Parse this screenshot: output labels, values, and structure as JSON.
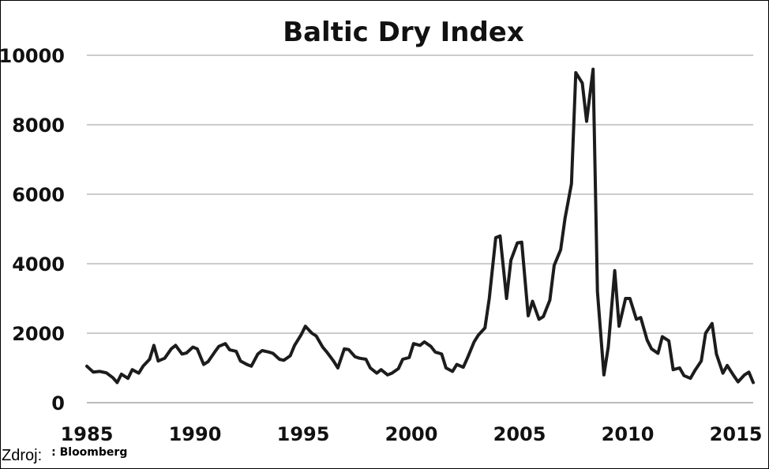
{
  "chart_data": {
    "type": "line",
    "title": "Baltic Dry Index",
    "xlabel": "",
    "ylabel": "",
    "xlim": [
      1985,
      2015.8
    ],
    "ylim": [
      0,
      10000
    ],
    "x_ticks": [
      "1985",
      "1990",
      "1995",
      "2000",
      "2005",
      "2010",
      "2015"
    ],
    "y_ticks": [
      "0",
      "2000",
      "4000",
      "6000",
      "8000",
      "10000"
    ],
    "grid": "horizontal",
    "series": [
      {
        "name": "",
        "color": "#1c1c1c",
        "x": [
          1985.0,
          1985.3,
          1985.6,
          1985.9,
          1986.2,
          1986.4,
          1986.6,
          1986.9,
          1987.1,
          1987.4,
          1987.6,
          1987.9,
          1988.1,
          1988.3,
          1988.6,
          1988.9,
          1989.1,
          1989.4,
          1989.6,
          1989.9,
          1990.1,
          1990.4,
          1990.6,
          1990.9,
          1991.1,
          1991.4,
          1991.6,
          1991.9,
          1992.1,
          1992.4,
          1992.6,
          1992.9,
          1993.1,
          1993.4,
          1993.6,
          1993.9,
          1994.1,
          1994.4,
          1994.6,
          1994.9,
          1995.1,
          1995.4,
          1995.6,
          1995.9,
          1996.1,
          1996.4,
          1996.6,
          1996.9,
          1997.1,
          1997.4,
          1997.6,
          1997.9,
          1998.1,
          1998.4,
          1998.6,
          1998.9,
          1999.1,
          1999.4,
          1999.6,
          1999.9,
          2000.1,
          2000.4,
          2000.6,
          2000.9,
          2001.1,
          2001.4,
          2001.6,
          2001.9,
          2002.1,
          2002.4,
          2002.6,
          2002.9,
          2003.1,
          2003.4,
          2003.6,
          2003.9,
          2004.1,
          2004.4,
          2004.6,
          2004.9,
          2005.1,
          2005.4,
          2005.6,
          2005.9,
          2006.1,
          2006.4,
          2006.6,
          2006.9,
          2007.1,
          2007.4,
          2007.6,
          2007.9,
          2008.1,
          2008.4,
          2008.6,
          2008.9,
          2009.1,
          2009.4,
          2009.6,
          2009.9,
          2010.1,
          2010.4,
          2010.6,
          2010.9,
          2011.1,
          2011.4,
          2011.6,
          2011.9,
          2012.1,
          2012.4,
          2012.6,
          2012.9,
          2013.1,
          2013.4,
          2013.6,
          2013.9,
          2014.1,
          2014.4,
          2014.6,
          2014.9,
          2015.1,
          2015.4,
          2015.6,
          2015.8
        ],
        "values": [
          1050,
          880,
          900,
          860,
          720,
          580,
          820,
          700,
          950,
          850,
          1050,
          1250,
          1650,
          1200,
          1280,
          1550,
          1650,
          1400,
          1430,
          1600,
          1550,
          1100,
          1180,
          1450,
          1620,
          1700,
          1520,
          1480,
          1200,
          1100,
          1050,
          1400,
          1500,
          1460,
          1420,
          1250,
          1220,
          1350,
          1650,
          1950,
          2200,
          2000,
          1920,
          1600,
          1450,
          1200,
          1000,
          1550,
          1530,
          1320,
          1280,
          1250,
          1000,
          850,
          950,
          800,
          850,
          980,
          1250,
          1300,
          1700,
          1650,
          1750,
          1620,
          1460,
          1400,
          1000,
          900,
          1100,
          1020,
          1300,
          1750,
          1950,
          2150,
          3000,
          4750,
          4800,
          3000,
          4100,
          4600,
          4620,
          2500,
          2920,
          2400,
          2480,
          2950,
          3950,
          4400,
          5300,
          6300,
          9500,
          9200,
          8100,
          9600,
          3200,
          800,
          1600,
          3800,
          2200,
          3000,
          3000,
          2400,
          2450,
          1800,
          1550,
          1420,
          1900,
          1780,
          950,
          1000,
          780,
          700,
          920,
          1200,
          2000,
          2280,
          1400,
          850,
          1070,
          780,
          600,
          800,
          880,
          580
        ]
      }
    ]
  },
  "source": {
    "label": "Zdroj:",
    "name": ": Bloomberg"
  }
}
